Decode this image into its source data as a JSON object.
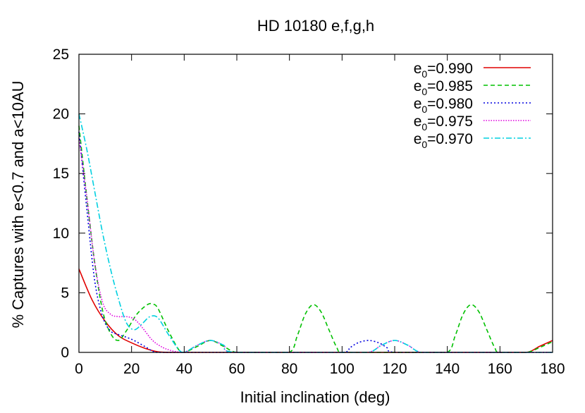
{
  "chart_data": {
    "type": "line",
    "title": "HD 10180 e,f,g,h",
    "xlabel": "Initial inclination (deg)",
    "ylabel": "% Captures with e<0.7 and a<10AU",
    "xlim": [
      0,
      180
    ],
    "ylim": [
      0,
      25
    ],
    "xticks": [
      0,
      20,
      40,
      60,
      80,
      100,
      120,
      140,
      160,
      180
    ],
    "yticks": [
      0,
      5,
      10,
      15,
      20,
      25
    ],
    "legend_position": "top-right",
    "grid": false,
    "series": [
      {
        "name": "e0=0.990",
        "legend_base": "e",
        "legend_sub": "0",
        "legend_value": "=0.990",
        "color": "#e00000",
        "dash": "",
        "x": [
          0,
          5,
          10,
          15,
          20,
          25,
          30,
          35,
          40,
          50,
          60,
          70,
          80,
          90,
          100,
          110,
          120,
          130,
          140,
          150,
          160,
          170,
          175,
          180
        ],
        "values": [
          7,
          4.4,
          2.6,
          1.4,
          0.8,
          0.35,
          0.05,
          0,
          0,
          0,
          0,
          0,
          0,
          0,
          0,
          0,
          0,
          0,
          0,
          0,
          0,
          0,
          0.5,
          1.0
        ]
      },
      {
        "name": "e0=0.985",
        "legend_base": "e",
        "legend_sub": "0",
        "legend_value": "=0.985",
        "color": "#00c000",
        "dash": "6,4",
        "x": [
          0,
          3,
          6,
          9,
          12,
          15,
          18,
          22,
          26,
          28,
          30,
          34,
          38,
          40,
          45,
          50,
          55,
          60,
          70,
          80,
          83,
          86,
          89,
          92,
          95,
          98,
          100,
          110,
          120,
          130,
          140,
          143,
          146,
          149,
          152,
          155,
          158,
          160,
          170,
          175,
          180
        ],
        "values": [
          19,
          13,
          7.5,
          3.5,
          1.6,
          1.0,
          1.8,
          3.2,
          4.0,
          4.05,
          3.7,
          1.8,
          0.2,
          0,
          0.5,
          1.0,
          0.5,
          0,
          0,
          0,
          1.4,
          3.2,
          4.0,
          3.4,
          1.9,
          0.4,
          0,
          0,
          0,
          0,
          0,
          1.4,
          3.2,
          4.0,
          3.4,
          1.9,
          0.4,
          0,
          0,
          0.4,
          0.9
        ]
      },
      {
        "name": "e0=0.980",
        "legend_base": "e",
        "legend_sub": "0",
        "legend_value": "=0.980",
        "color": "#0000e0",
        "dash": "2,3",
        "x": [
          0,
          3,
          6,
          9,
          12,
          15,
          20,
          25,
          28,
          30,
          40,
          50,
          60,
          80,
          100,
          103,
          106,
          110,
          114,
          117,
          120,
          140,
          160,
          180
        ],
        "values": [
          18.5,
          12,
          6,
          3,
          1.8,
          1.5,
          1.1,
          0.5,
          0.1,
          0,
          0,
          0,
          0,
          0,
          0,
          0.4,
          0.8,
          1.0,
          0.8,
          0.4,
          0,
          0,
          0,
          0
        ]
      },
      {
        "name": "e0=0.975",
        "legend_base": "e",
        "legend_sub": "0",
        "legend_value": "=0.975",
        "color": "#e000e0",
        "dash": "1.5,2",
        "x": [
          0,
          3,
          6,
          9,
          12,
          15,
          18,
          21,
          24,
          28,
          32,
          36,
          40,
          45,
          50,
          55,
          60,
          100,
          110,
          115,
          120,
          125,
          130,
          140,
          160,
          180
        ],
        "values": [
          18,
          13,
          7.5,
          4.2,
          3.2,
          3.0,
          3.0,
          2.8,
          2.1,
          1.0,
          0.4,
          0.1,
          0,
          0.6,
          1.0,
          0.6,
          0,
          0,
          0,
          0.6,
          1.0,
          0.6,
          0,
          0,
          0,
          0
        ]
      },
      {
        "name": "e0=0.970",
        "legend_base": "e",
        "legend_sub": "0",
        "legend_value": "=0.970",
        "color": "#00d0e0",
        "dash": "8,3,2,3",
        "x": [
          0,
          3,
          6,
          9,
          12,
          15,
          18,
          21,
          24,
          27,
          30,
          34,
          38,
          40,
          45,
          50,
          55,
          60,
          100,
          110,
          115,
          120,
          125,
          130,
          140,
          160,
          180
        ],
        "values": [
          20,
          17,
          13.5,
          10,
          7,
          4.5,
          2.5,
          1.9,
          2.4,
          3.0,
          2.9,
          1.5,
          0.2,
          0,
          0.6,
          1.0,
          0.6,
          0,
          0,
          0,
          0.6,
          1.0,
          0.6,
          0,
          0,
          0,
          0
        ]
      }
    ]
  }
}
